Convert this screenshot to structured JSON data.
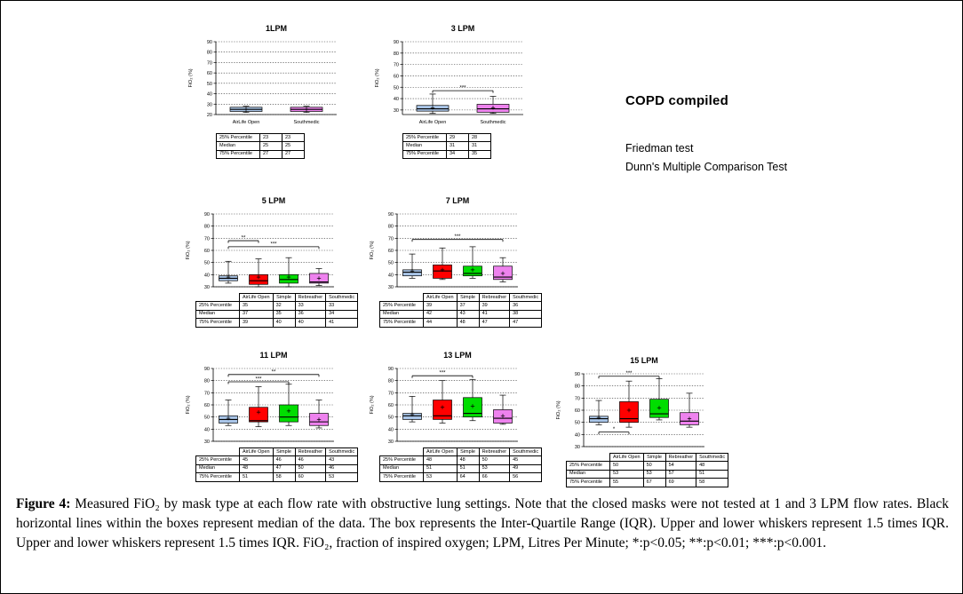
{
  "annotations": {
    "group_title": "COPD compiled",
    "test_lines": [
      "Friedman test",
      "Dunn's Multiple Comparison Test"
    ]
  },
  "caption": {
    "figure_label": "Figure 4:",
    "text": " Measured FiO₂ by mask type at each flow rate with obstructive lung settings. Note that the closed masks were not tested at 1 and 3 LPM flow rates. Black horizontal lines within the boxes represent median of the data. The box represents the Inter-Quartile Range (IQR). Upper and lower whiskers represent 1.5 times IQR. Upper and lower whiskers represent 1.5 times IQR. FiO₂, fraction of inspired oxygen; LPM, Litres Per Minute; *:p<0.05; **:p<0.01; ***:p<0.001."
  },
  "chart_data": [
    {
      "type": "box",
      "title": "1LPM",
      "ylabel": "FiO₂ (%)",
      "ylim": [
        20,
        90
      ],
      "yticks": [
        20,
        30,
        40,
        50,
        60,
        70,
        80,
        90
      ],
      "categories": [
        "AirLife Open",
        "Southmedic"
      ],
      "colors": [
        "#a9c5e8",
        "#ee82ee"
      ],
      "boxes": [
        {
          "lo": 22,
          "q1": 23,
          "med": 25,
          "mean": 25,
          "q3": 27,
          "hi": 28
        },
        {
          "lo": 22,
          "q1": 23,
          "med": 25,
          "mean": 25,
          "q3": 27,
          "hi": 28
        }
      ],
      "brackets": [],
      "table": {
        "row_labels": [
          "25% Percentile",
          "Median",
          "75% Percentile"
        ],
        "values": [
          [
            23,
            23
          ],
          [
            25,
            25
          ],
          [
            27,
            27
          ]
        ]
      }
    },
    {
      "type": "box",
      "title": "3 LPM",
      "ylabel": "FiO₂ (%)",
      "ylim": [
        26,
        90
      ],
      "yticks": [
        30,
        40,
        50,
        60,
        70,
        80,
        90
      ],
      "categories": [
        "AirLife Open",
        "Southmedic"
      ],
      "colors": [
        "#a9c5e8",
        "#ee82ee"
      ],
      "boxes": [
        {
          "lo": 27,
          "q1": 29,
          "med": 31,
          "mean": 32,
          "q3": 34,
          "hi": 44
        },
        {
          "lo": 27,
          "q1": 28,
          "med": 31,
          "mean": 32,
          "q3": 35,
          "hi": 42
        }
      ],
      "brackets": [
        {
          "from": 0,
          "to": 1,
          "y": 47,
          "label": "***"
        }
      ],
      "table": {
        "row_labels": [
          "25% Percentile",
          "Median",
          "75% Percentile"
        ],
        "values": [
          [
            29,
            28
          ],
          [
            31,
            31
          ],
          [
            34,
            35
          ]
        ]
      }
    },
    {
      "type": "box",
      "title": "5 LPM",
      "ylabel": "FiO₂ (%)",
      "ylim": [
        30,
        90
      ],
      "yticks": [
        30,
        40,
        50,
        60,
        70,
        80,
        90
      ],
      "categories": [
        "AirLife Open",
        "Simple",
        "Rebreather",
        "Southmedic"
      ],
      "colors": [
        "#a9c5e8",
        "#ff0000",
        "#00dd00",
        "#ee82ee"
      ],
      "boxes": [
        {
          "lo": 33,
          "q1": 35,
          "med": 37,
          "mean": 38,
          "q3": 39,
          "hi": 51
        },
        {
          "lo": 30,
          "q1": 32,
          "med": 35,
          "mean": 38,
          "q3": 40,
          "hi": 53
        },
        {
          "lo": 30,
          "q1": 33,
          "med": 36,
          "mean": 38,
          "q3": 40,
          "hi": 54
        },
        {
          "lo": 31,
          "q1": 33,
          "med": 34,
          "mean": 37,
          "q3": 41,
          "hi": 45
        }
      ],
      "brackets": [
        {
          "from": 0,
          "to": 1,
          "y": 68,
          "label": "**"
        },
        {
          "from": 0,
          "to": 3,
          "y": 63,
          "label": "***"
        }
      ],
      "table": {
        "row_labels": [
          "25% Percentile",
          "Median",
          "75% Percentile"
        ],
        "values": [
          [
            35,
            32,
            33,
            33
          ],
          [
            37,
            35,
            36,
            34
          ],
          [
            39,
            40,
            40,
            41
          ]
        ]
      }
    },
    {
      "type": "box",
      "title": "7 LPM",
      "ylabel": "FiO₂ (%)",
      "ylim": [
        30,
        90
      ],
      "yticks": [
        30,
        40,
        50,
        60,
        70,
        80,
        90
      ],
      "categories": [
        "AirLife Open",
        "Simple",
        "Rebreather",
        "Southmedic"
      ],
      "colors": [
        "#a9c5e8",
        "#ff0000",
        "#00dd00",
        "#ee82ee"
      ],
      "boxes": [
        {
          "lo": 37,
          "q1": 39,
          "med": 42,
          "mean": 43,
          "q3": 44,
          "hi": 57
        },
        {
          "lo": 36,
          "q1": 37,
          "med": 43,
          "mean": 44,
          "q3": 48,
          "hi": 62
        },
        {
          "lo": 37,
          "q1": 39,
          "med": 41,
          "mean": 44,
          "q3": 47,
          "hi": 63
        },
        {
          "lo": 34,
          "q1": 36,
          "med": 38,
          "mean": 41,
          "q3": 47,
          "hi": 54
        }
      ],
      "brackets": [
        {
          "from": 0,
          "to": 3,
          "y": 69,
          "label": "***"
        }
      ],
      "table": {
        "row_labels": [
          "25% Percentile",
          "Median",
          "75% Percentile"
        ],
        "values": [
          [
            39,
            37,
            39,
            36
          ],
          [
            42,
            43,
            41,
            38
          ],
          [
            44,
            48,
            47,
            47
          ]
        ]
      }
    },
    {
      "type": "box",
      "title": "11 LPM",
      "ylabel": "FiO₂ (%)",
      "ylim": [
        30,
        90
      ],
      "yticks": [
        30,
        40,
        50,
        60,
        70,
        80,
        90
      ],
      "categories": [
        "AirLife Open",
        "Simple",
        "Rebreather",
        "Southmedic"
      ],
      "colors": [
        "#a9c5e8",
        "#ff0000",
        "#00dd00",
        "#ee82ee"
      ],
      "boxes": [
        {
          "lo": 43,
          "q1": 45,
          "med": 48,
          "mean": 49,
          "q3": 51,
          "hi": 64
        },
        {
          "lo": 42,
          "q1": 46,
          "med": 47,
          "mean": 54,
          "q3": 58,
          "hi": 75
        },
        {
          "lo": 43,
          "q1": 46,
          "med": 50,
          "mean": 55,
          "q3": 60,
          "hi": 77
        },
        {
          "lo": 41,
          "q1": 43,
          "med": 46,
          "mean": 48,
          "q3": 53,
          "hi": 64
        }
      ],
      "brackets": [
        {
          "from": 0,
          "to": 3,
          "y": 85,
          "label": "**"
        },
        {
          "from": 0,
          "to": 2,
          "y": 79,
          "label": "***"
        }
      ],
      "table": {
        "row_labels": [
          "25% Percentile",
          "Median",
          "75% Percentile"
        ],
        "values": [
          [
            45,
            46,
            46,
            43
          ],
          [
            48,
            47,
            50,
            46
          ],
          [
            51,
            58,
            60,
            53
          ]
        ]
      }
    },
    {
      "type": "box",
      "title": "13 LPM",
      "ylabel": "FiO₂ (%)",
      "ylim": [
        30,
        90
      ],
      "yticks": [
        30,
        40,
        50,
        60,
        70,
        80,
        90
      ],
      "categories": [
        "AirLife Open",
        "Simple",
        "Rebreather",
        "Southmedic"
      ],
      "colors": [
        "#a9c5e8",
        "#ff0000",
        "#00dd00",
        "#ee82ee"
      ],
      "boxes": [
        {
          "lo": 46,
          "q1": 48,
          "med": 51,
          "mean": 52,
          "q3": 53,
          "hi": 67
        },
        {
          "lo": 45,
          "q1": 48,
          "med": 51,
          "mean": 58,
          "q3": 64,
          "hi": 80
        },
        {
          "lo": 47,
          "q1": 50,
          "med": 53,
          "mean": 59,
          "q3": 66,
          "hi": 81
        },
        {
          "lo": 44,
          "q1": 45,
          "med": 49,
          "mean": 51,
          "q3": 56,
          "hi": 68
        }
      ],
      "brackets": [
        {
          "from": 0,
          "to": 2,
          "y": 84,
          "label": "***"
        }
      ],
      "table": {
        "row_labels": [
          "25% Percentile",
          "Median",
          "75% Percentile"
        ],
        "values": [
          [
            48,
            48,
            50,
            45
          ],
          [
            51,
            51,
            53,
            49
          ],
          [
            53,
            64,
            66,
            56
          ]
        ]
      }
    },
    {
      "type": "box",
      "title": "15 LPM",
      "ylabel": "FiO₂ (%)",
      "ylim": [
        30,
        90
      ],
      "yticks": [
        30,
        40,
        50,
        60,
        70,
        80,
        90
      ],
      "categories": [
        "AirLife Open",
        "Simple",
        "Rebreather",
        "Southmedic"
      ],
      "colors": [
        "#a9c5e8",
        "#ff0000",
        "#00dd00",
        "#ee82ee"
      ],
      "boxes": [
        {
          "lo": 48,
          "q1": 50,
          "med": 53,
          "mean": 54,
          "q3": 55,
          "hi": 68
        },
        {
          "lo": 46,
          "q1": 50,
          "med": 53,
          "mean": 60,
          "q3": 67,
          "hi": 84
        },
        {
          "lo": 52,
          "q1": 54,
          "med": 57,
          "mean": 62,
          "q3": 69,
          "hi": 86
        },
        {
          "lo": 46,
          "q1": 48,
          "med": 51,
          "mean": 53,
          "q3": 58,
          "hi": 74
        }
      ],
      "brackets": [
        {
          "from": 0,
          "to": 2,
          "y": 88,
          "label": "***"
        },
        {
          "from": 0,
          "to": 1,
          "y": 42,
          "label": "*"
        }
      ],
      "table": {
        "row_labels": [
          "25% Percentile",
          "Median",
          "75% Percentile"
        ],
        "values": [
          [
            50,
            50,
            54,
            48
          ],
          [
            53,
            53,
            57,
            51
          ],
          [
            55,
            67,
            69,
            58
          ]
        ]
      }
    }
  ]
}
